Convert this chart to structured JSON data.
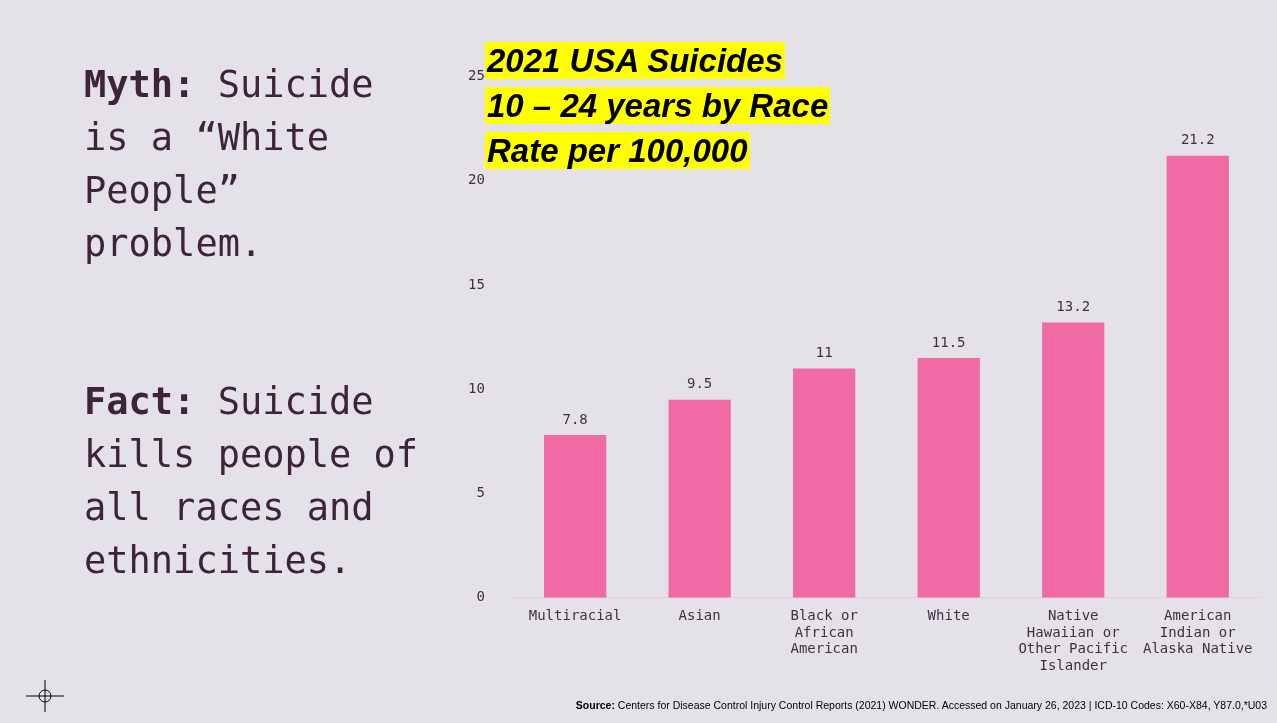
{
  "chart_data": {
    "type": "bar",
    "title": "2021 USA Suicides\n10 – 24 years by Race\nRate per 100,000",
    "categories": [
      "Multiracial",
      "Asian",
      "Black or African American",
      "White",
      "Native Hawaiian or Other Pacific Islander",
      "American Indian or Alaska Native"
    ],
    "values": [
      7.8,
      9.5,
      11,
      11.5,
      13.2,
      21.2
    ],
    "color": "#f06aa3",
    "ylim": [
      0,
      25
    ],
    "yticks": [
      0,
      5,
      10,
      15,
      20,
      25
    ],
    "grid": false,
    "legend": false,
    "data_labels": true,
    "annotations": [
      "Myth: Suicide is a “White People” problem.",
      "Fact: Suicide kills people of all races and ethnicities.",
      "Source: Centers for Disease Control Injury Control Reports (2021) WONDER. Accessed on January 26, 2023 | ICD-10 Codes: X60-X84, Y87.0,*U03"
    ]
  }
}
